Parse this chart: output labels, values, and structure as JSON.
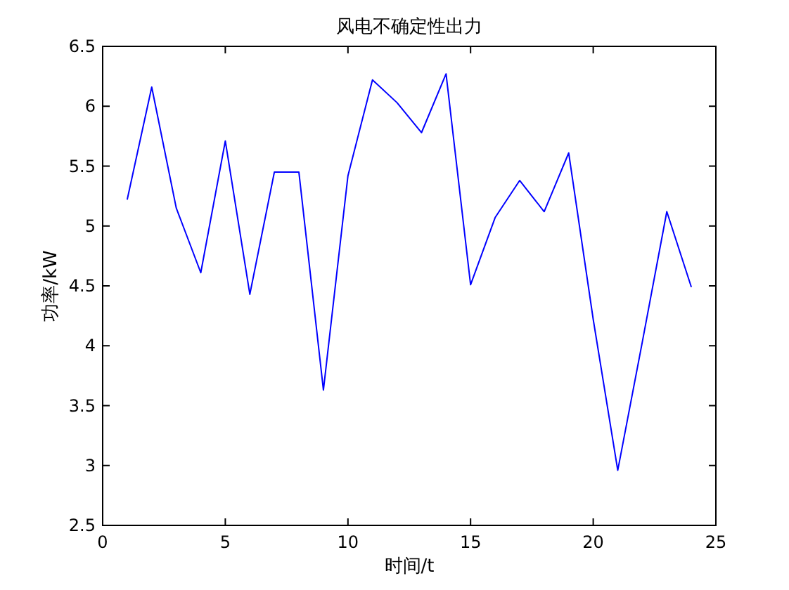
{
  "chart_data": {
    "type": "line",
    "title": "风电不确定性出力",
    "xlabel": "时间/t",
    "ylabel": "功率/kW",
    "x": [
      1,
      2,
      3,
      4,
      5,
      6,
      7,
      8,
      9,
      10,
      11,
      12,
      13,
      14,
      15,
      16,
      17,
      18,
      19,
      20,
      21,
      22,
      23,
      24
    ],
    "series": [
      {
        "color": "#0000ff",
        "values": [
          5.22,
          6.16,
          5.15,
          4.61,
          5.71,
          4.43,
          5.45,
          5.45,
          3.63,
          5.42,
          6.22,
          6.03,
          5.78,
          6.27,
          4.51,
          5.07,
          5.38,
          5.12,
          5.61,
          4.22,
          2.96,
          4.03,
          5.12,
          4.49
        ]
      }
    ],
    "xlim": [
      0,
      25
    ],
    "xticks": [
      0,
      5,
      10,
      15,
      20,
      25
    ],
    "ylim": [
      2.5,
      6.5
    ],
    "yticks": [
      2.5,
      3,
      3.5,
      4,
      4.5,
      5,
      5.5,
      6,
      6.5
    ]
  }
}
